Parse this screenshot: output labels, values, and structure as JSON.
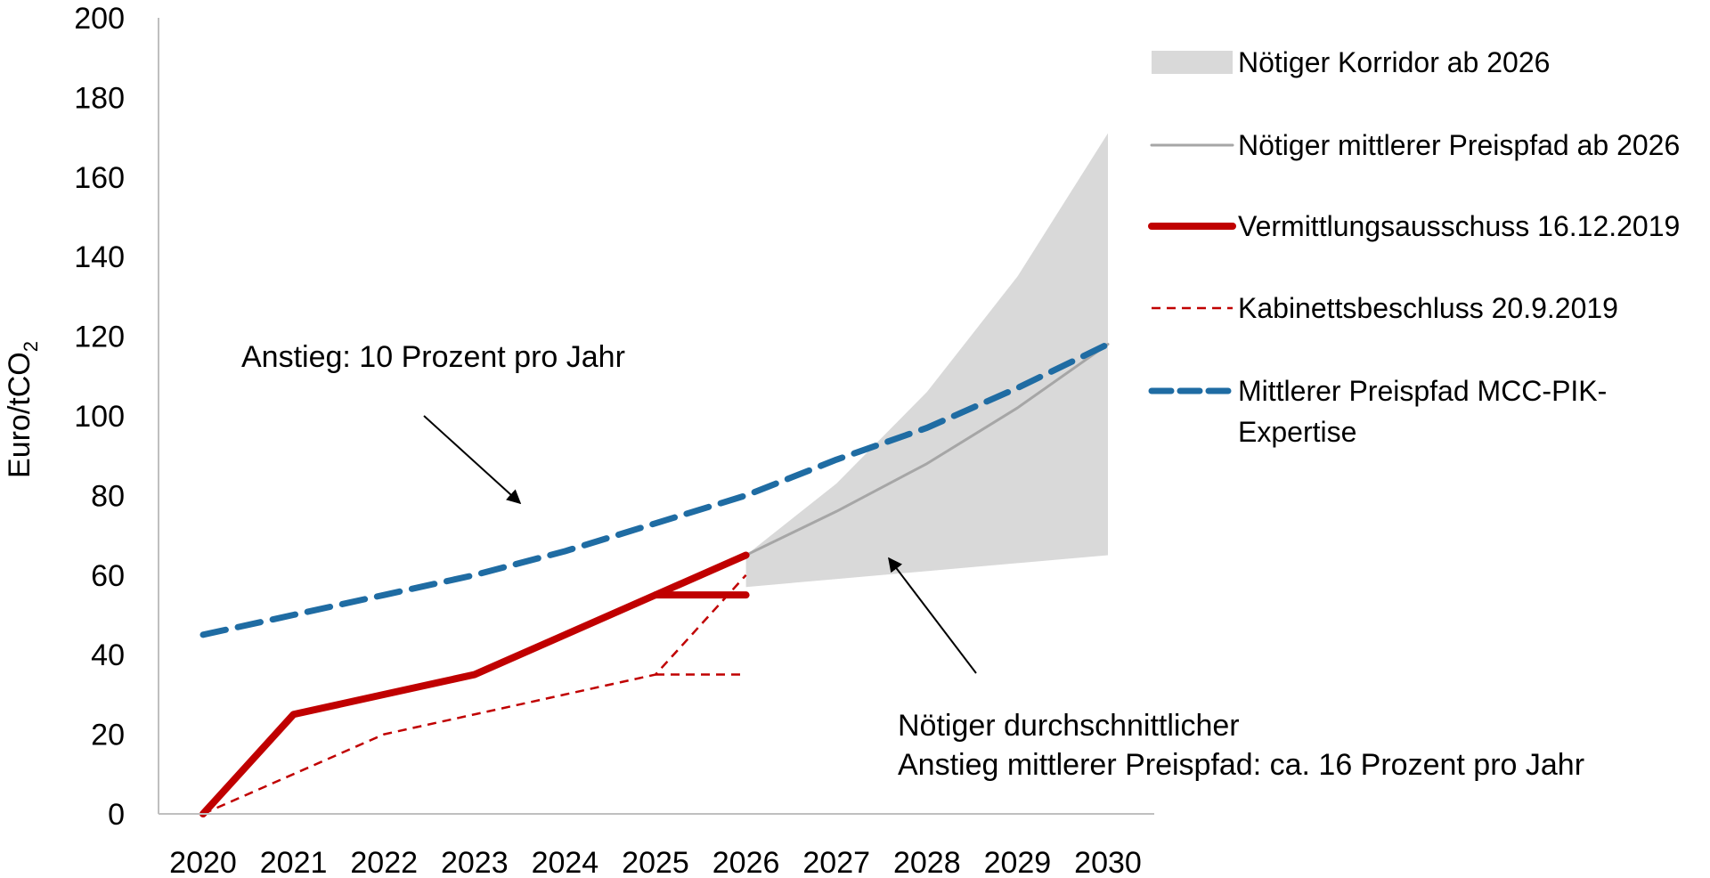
{
  "chart_data": {
    "type": "line",
    "ylabel": "Euro/tCO",
    "ylabel_subscript": "2",
    "ylim": [
      0,
      200
    ],
    "yticks": [
      0,
      20,
      40,
      60,
      80,
      100,
      120,
      140,
      160,
      180,
      200
    ],
    "categories": [
      "2020",
      "2021",
      "2022",
      "2023",
      "2024",
      "2025",
      "2026",
      "2027",
      "2028",
      "2029",
      "2030"
    ],
    "grid": false,
    "legend_position": "top-right",
    "corridor": {
      "name": "Nötiger Korridor ab 2026",
      "color": "#d9d9d9",
      "x": [
        "2026",
        "2027",
        "2028",
        "2029",
        "2030"
      ],
      "lower": [
        57,
        59,
        61,
        63,
        65
      ],
      "upper": [
        65,
        83,
        106,
        135,
        171
      ]
    },
    "series": [
      {
        "name": "Nötiger mittlerer Preispfad ab 2026",
        "color": "#a6a6a6",
        "style": "solid-thin",
        "points": [
          [
            "2026",
            65
          ],
          [
            "2027",
            76
          ],
          [
            "2028",
            88
          ],
          [
            "2029",
            102
          ],
          [
            "2030",
            118
          ]
        ]
      },
      {
        "name": "Vermittlungsausschuss 16.12.2019",
        "color": "#c00000",
        "style": "solid-thick",
        "points": [
          [
            "2020",
            0
          ],
          [
            "2021",
            25
          ],
          [
            "2022",
            30
          ],
          [
            "2023",
            35
          ],
          [
            "2024",
            45
          ],
          [
            "2025",
            55
          ],
          [
            "2026",
            65
          ]
        ],
        "extra_segments": [
          [
            [
              "2025",
              55
            ],
            [
              "2026",
              55
            ]
          ]
        ]
      },
      {
        "name": "Kabinettsbeschluss 20.9.2019",
        "color": "#c00000",
        "style": "dashed-thin",
        "points": [
          [
            "2020",
            0
          ],
          [
            "2021",
            10
          ],
          [
            "2022",
            20
          ],
          [
            "2023",
            25
          ],
          [
            "2024",
            30
          ],
          [
            "2025",
            35
          ],
          [
            "2026",
            60
          ]
        ],
        "extra_segments": [
          [
            [
              "2025",
              35
            ],
            [
              "2026",
              35
            ]
          ]
        ]
      },
      {
        "name": "Mittlerer Preispfad MCC-PIK-\nExpertise",
        "color": "#1f6ca3",
        "style": "dashed-thick",
        "points": [
          [
            "2020",
            45
          ],
          [
            "2021",
            50
          ],
          [
            "2022",
            55
          ],
          [
            "2023",
            60
          ],
          [
            "2024",
            66
          ],
          [
            "2025",
            73
          ],
          [
            "2026",
            80
          ],
          [
            "2027",
            89
          ],
          [
            "2028",
            97
          ],
          [
            "2029",
            107
          ],
          [
            "2030",
            118
          ]
        ]
      }
    ],
    "annotations": [
      {
        "lines": [
          "Anstieg: 10 Prozent pro Jahr"
        ]
      },
      {
        "lines": [
          "Nötiger durchschnittlicher",
          "Anstieg mittlerer Preispfad: ca. 16 Prozent pro Jahr"
        ]
      }
    ]
  }
}
